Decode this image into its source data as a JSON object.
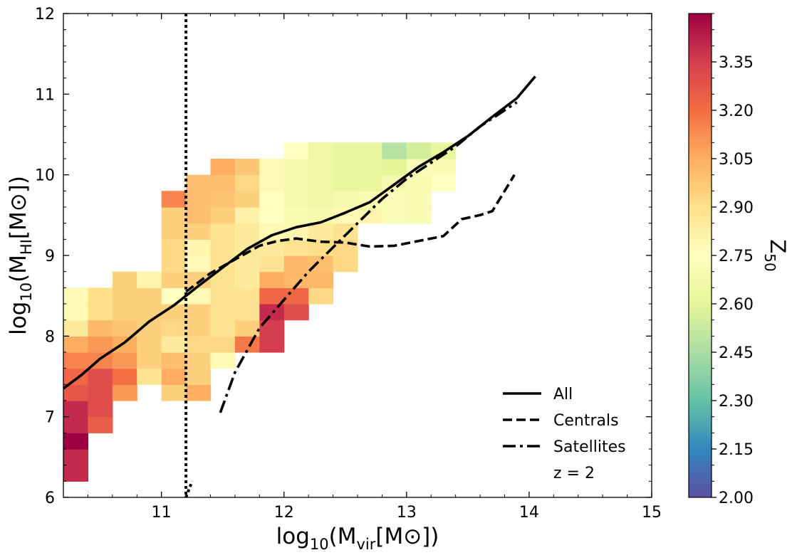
{
  "chart_data": {
    "type": "heatmap",
    "title": "",
    "xlabel": "log₁₀(Mᵥᵢᵣ[M⊙])",
    "xlabel_main": "log",
    "xlabel_sub1": "10",
    "xlabel_mid": "(M",
    "xlabel_sub2": "vir",
    "xlabel_end": "[M⊙])",
    "ylabel_main": "log",
    "ylabel_sub1": "10",
    "ylabel_mid": "(M",
    "ylabel_sub2": "HI",
    "ylabel_end": "[M⊙])",
    "xlim": [
      10.2,
      15
    ],
    "ylim": [
      6,
      12
    ],
    "xticks": [
      11,
      12,
      13,
      14,
      15
    ],
    "yticks": [
      6,
      7,
      8,
      9,
      10,
      11,
      12
    ],
    "bin_width": 0.2,
    "bin_height": 0.2,
    "colorbar": {
      "label": "Z",
      "label_sub": "50",
      "range": [
        2.0,
        3.5
      ],
      "ticks": [
        2.0,
        2.15,
        2.3,
        2.45,
        2.6,
        2.75,
        2.9,
        3.05,
        3.2,
        3.35
      ],
      "tick_labels": [
        "2.00",
        "2.15",
        "2.30",
        "2.45",
        "2.60",
        "2.75",
        "2.90",
        "3.05",
        "3.20",
        "3.35"
      ]
    },
    "cells": [
      {
        "x": 10.2,
        "y": 6.2,
        "z": 3.4
      },
      {
        "x": 10.2,
        "y": 6.4,
        "z": 3.4
      },
      {
        "x": 10.2,
        "y": 6.6,
        "z": 3.5
      },
      {
        "x": 10.2,
        "y": 6.8,
        "z": 3.4
      },
      {
        "x": 10.2,
        "y": 7.0,
        "z": 3.4
      },
      {
        "x": 10.2,
        "y": 7.2,
        "z": 3.27
      },
      {
        "x": 10.2,
        "y": 7.4,
        "z": 3.22
      },
      {
        "x": 10.2,
        "y": 7.6,
        "z": 3.15
      },
      {
        "x": 10.2,
        "y": 7.8,
        "z": 3.05
      },
      {
        "x": 10.2,
        "y": 8.0,
        "z": 2.85
      },
      {
        "x": 10.2,
        "y": 8.2,
        "z": 2.78
      },
      {
        "x": 10.2,
        "y": 8.4,
        "z": 2.78
      },
      {
        "x": 10.4,
        "y": 6.8,
        "z": 3.25
      },
      {
        "x": 10.4,
        "y": 7.0,
        "z": 3.3
      },
      {
        "x": 10.4,
        "y": 7.2,
        "z": 3.3
      },
      {
        "x": 10.4,
        "y": 7.4,
        "z": 3.3
      },
      {
        "x": 10.4,
        "y": 7.6,
        "z": 3.15
      },
      {
        "x": 10.4,
        "y": 7.8,
        "z": 3.1
      },
      {
        "x": 10.4,
        "y": 8.0,
        "z": 3.02
      },
      {
        "x": 10.4,
        "y": 8.2,
        "z": 2.9
      },
      {
        "x": 10.4,
        "y": 8.4,
        "z": 2.9
      },
      {
        "x": 10.6,
        "y": 7.2,
        "z": 3.1
      },
      {
        "x": 10.6,
        "y": 7.4,
        "z": 3.2
      },
      {
        "x": 10.6,
        "y": 7.6,
        "z": 3.1
      },
      {
        "x": 10.6,
        "y": 7.8,
        "z": 3.05
      },
      {
        "x": 10.6,
        "y": 8.0,
        "z": 2.98
      },
      {
        "x": 10.6,
        "y": 8.2,
        "z": 2.95
      },
      {
        "x": 10.6,
        "y": 8.4,
        "z": 2.95
      },
      {
        "x": 10.6,
        "y": 8.6,
        "z": 2.95
      },
      {
        "x": 10.8,
        "y": 7.4,
        "z": 2.88
      },
      {
        "x": 10.8,
        "y": 7.6,
        "z": 2.95
      },
      {
        "x": 10.8,
        "y": 7.8,
        "z": 2.95
      },
      {
        "x": 10.8,
        "y": 8.0,
        "z": 2.95
      },
      {
        "x": 10.8,
        "y": 8.2,
        "z": 2.95
      },
      {
        "x": 10.8,
        "y": 8.4,
        "z": 2.95
      },
      {
        "x": 10.8,
        "y": 8.6,
        "z": 2.8
      },
      {
        "x": 11.0,
        "y": 7.2,
        "z": 2.95
      },
      {
        "x": 11.0,
        "y": 7.4,
        "z": 3.05
      },
      {
        "x": 11.0,
        "y": 7.6,
        "z": 3.0
      },
      {
        "x": 11.0,
        "y": 7.8,
        "z": 2.85
      },
      {
        "x": 11.0,
        "y": 8.0,
        "z": 2.92
      },
      {
        "x": 11.0,
        "y": 8.2,
        "z": 2.95
      },
      {
        "x": 11.0,
        "y": 8.4,
        "z": 2.75
      },
      {
        "x": 11.0,
        "y": 8.6,
        "z": 2.95
      },
      {
        "x": 11.0,
        "y": 8.8,
        "z": 2.92
      },
      {
        "x": 11.0,
        "y": 9.0,
        "z": 2.92
      },
      {
        "x": 11.0,
        "y": 9.2,
        "z": 2.95
      },
      {
        "x": 11.0,
        "y": 9.4,
        "z": 2.95
      },
      {
        "x": 11.0,
        "y": 9.6,
        "z": 3.15
      },
      {
        "x": 11.2,
        "y": 7.2,
        "z": 3.05
      },
      {
        "x": 11.2,
        "y": 7.4,
        "z": 2.95
      },
      {
        "x": 11.2,
        "y": 7.6,
        "z": 2.95
      },
      {
        "x": 11.2,
        "y": 7.8,
        "z": 2.92
      },
      {
        "x": 11.2,
        "y": 8.0,
        "z": 2.95
      },
      {
        "x": 11.2,
        "y": 8.2,
        "z": 2.95
      },
      {
        "x": 11.2,
        "y": 8.4,
        "z": 2.78
      },
      {
        "x": 11.2,
        "y": 8.6,
        "z": 2.95
      },
      {
        "x": 11.2,
        "y": 8.8,
        "z": 2.78
      },
      {
        "x": 11.2,
        "y": 9.0,
        "z": 2.8
      },
      {
        "x": 11.2,
        "y": 9.2,
        "z": 2.95
      },
      {
        "x": 11.2,
        "y": 9.4,
        "z": 3.0
      },
      {
        "x": 11.2,
        "y": 9.6,
        "z": 3.0
      },
      {
        "x": 11.2,
        "y": 9.8,
        "z": 3.0
      },
      {
        "x": 11.4,
        "y": 7.6,
        "z": 2.78
      },
      {
        "x": 11.4,
        "y": 7.8,
        "z": 2.92
      },
      {
        "x": 11.4,
        "y": 8.0,
        "z": 2.88
      },
      {
        "x": 11.4,
        "y": 8.2,
        "z": 2.88
      },
      {
        "x": 11.4,
        "y": 8.4,
        "z": 2.88
      },
      {
        "x": 11.4,
        "y": 8.6,
        "z": 2.88
      },
      {
        "x": 11.4,
        "y": 8.8,
        "z": 2.88
      },
      {
        "x": 11.4,
        "y": 9.0,
        "z": 2.88
      },
      {
        "x": 11.4,
        "y": 9.2,
        "z": 2.88
      },
      {
        "x": 11.4,
        "y": 9.4,
        "z": 2.95
      },
      {
        "x": 11.4,
        "y": 9.6,
        "z": 2.98
      },
      {
        "x": 11.4,
        "y": 9.8,
        "z": 3.0
      },
      {
        "x": 11.4,
        "y": 10.0,
        "z": 3.05
      },
      {
        "x": 11.6,
        "y": 7.8,
        "z": 3.18
      },
      {
        "x": 11.6,
        "y": 8.0,
        "z": 2.95
      },
      {
        "x": 11.6,
        "y": 8.2,
        "z": 2.88
      },
      {
        "x": 11.6,
        "y": 8.4,
        "z": 2.88
      },
      {
        "x": 11.6,
        "y": 8.6,
        "z": 2.85
      },
      {
        "x": 11.6,
        "y": 8.8,
        "z": 2.85
      },
      {
        "x": 11.6,
        "y": 9.0,
        "z": 2.85
      },
      {
        "x": 11.6,
        "y": 9.2,
        "z": 2.85
      },
      {
        "x": 11.6,
        "y": 9.4,
        "z": 2.82
      },
      {
        "x": 11.6,
        "y": 9.6,
        "z": 2.95
      },
      {
        "x": 11.6,
        "y": 9.8,
        "z": 2.92
      },
      {
        "x": 11.6,
        "y": 10.0,
        "z": 2.98
      },
      {
        "x": 11.8,
        "y": 7.8,
        "z": 3.35
      },
      {
        "x": 11.8,
        "y": 8.0,
        "z": 3.35
      },
      {
        "x": 11.8,
        "y": 8.2,
        "z": 3.4
      },
      {
        "x": 11.8,
        "y": 8.4,
        "z": 3.22
      },
      {
        "x": 11.8,
        "y": 8.6,
        "z": 3.05
      },
      {
        "x": 11.8,
        "y": 8.8,
        "z": 2.88
      },
      {
        "x": 11.8,
        "y": 9.0,
        "z": 2.85
      },
      {
        "x": 11.8,
        "y": 9.2,
        "z": 2.78
      },
      {
        "x": 11.8,
        "y": 9.4,
        "z": 2.75
      },
      {
        "x": 11.8,
        "y": 9.6,
        "z": 2.75
      },
      {
        "x": 11.8,
        "y": 9.8,
        "z": 2.78
      },
      {
        "x": 11.8,
        "y": 10.0,
        "z": 2.78
      },
      {
        "x": 12.0,
        "y": 8.2,
        "z": 3.3
      },
      {
        "x": 12.0,
        "y": 8.4,
        "z": 3.22
      },
      {
        "x": 12.0,
        "y": 8.6,
        "z": 3.02
      },
      {
        "x": 12.0,
        "y": 8.8,
        "z": 3.02
      },
      {
        "x": 12.0,
        "y": 9.0,
        "z": 2.88
      },
      {
        "x": 12.0,
        "y": 9.2,
        "z": 2.8
      },
      {
        "x": 12.0,
        "y": 9.4,
        "z": 2.7
      },
      {
        "x": 12.0,
        "y": 9.6,
        "z": 2.68
      },
      {
        "x": 12.0,
        "y": 9.8,
        "z": 2.68
      },
      {
        "x": 12.0,
        "y": 10.0,
        "z": 2.68
      },
      {
        "x": 12.0,
        "y": 10.2,
        "z": 2.75
      },
      {
        "x": 12.2,
        "y": 8.4,
        "z": 2.92
      },
      {
        "x": 12.2,
        "y": 8.6,
        "z": 3.02
      },
      {
        "x": 12.2,
        "y": 8.8,
        "z": 3.0
      },
      {
        "x": 12.2,
        "y": 9.0,
        "z": 2.9
      },
      {
        "x": 12.2,
        "y": 9.2,
        "z": 2.85
      },
      {
        "x": 12.2,
        "y": 9.4,
        "z": 2.68
      },
      {
        "x": 12.2,
        "y": 9.6,
        "z": 2.65
      },
      {
        "x": 12.2,
        "y": 9.8,
        "z": 2.65
      },
      {
        "x": 12.2,
        "y": 10.0,
        "z": 2.65
      },
      {
        "x": 12.2,
        "y": 10.2,
        "z": 2.65
      },
      {
        "x": 12.4,
        "y": 8.8,
        "z": 2.92
      },
      {
        "x": 12.4,
        "y": 9.0,
        "z": 2.92
      },
      {
        "x": 12.4,
        "y": 9.2,
        "z": 2.88
      },
      {
        "x": 12.4,
        "y": 9.4,
        "z": 2.78
      },
      {
        "x": 12.4,
        "y": 9.6,
        "z": 2.68
      },
      {
        "x": 12.4,
        "y": 9.8,
        "z": 2.62
      },
      {
        "x": 12.4,
        "y": 10.0,
        "z": 2.62
      },
      {
        "x": 12.4,
        "y": 10.2,
        "z": 2.62
      },
      {
        "x": 12.6,
        "y": 9.4,
        "z": 2.8
      },
      {
        "x": 12.6,
        "y": 9.6,
        "z": 2.7
      },
      {
        "x": 12.6,
        "y": 9.8,
        "z": 2.62
      },
      {
        "x": 12.6,
        "y": 10.0,
        "z": 2.62
      },
      {
        "x": 12.6,
        "y": 10.2,
        "z": 2.62
      },
      {
        "x": 12.8,
        "y": 9.4,
        "z": 2.72
      },
      {
        "x": 12.8,
        "y": 9.6,
        "z": 2.72
      },
      {
        "x": 12.8,
        "y": 9.8,
        "z": 2.68
      },
      {
        "x": 12.8,
        "y": 10.0,
        "z": 2.6
      },
      {
        "x": 12.8,
        "y": 10.2,
        "z": 2.48
      },
      {
        "x": 13.0,
        "y": 9.4,
        "z": 2.7
      },
      {
        "x": 13.0,
        "y": 9.6,
        "z": 2.7
      },
      {
        "x": 13.0,
        "y": 9.8,
        "z": 2.7
      },
      {
        "x": 13.0,
        "y": 10.0,
        "z": 2.72
      },
      {
        "x": 13.0,
        "y": 10.2,
        "z": 2.55
      },
      {
        "x": 13.2,
        "y": 9.8,
        "z": 2.75
      },
      {
        "x": 13.2,
        "y": 10.0,
        "z": 2.7
      },
      {
        "x": 13.2,
        "y": 10.2,
        "z": 2.62
      }
    ],
    "series": [
      {
        "name": "All",
        "style": "solid",
        "x": [
          10.2,
          10.35,
          10.5,
          10.7,
          10.9,
          11.1,
          11.3,
          11.5,
          11.7,
          11.9,
          12.1,
          12.3,
          12.5,
          12.7,
          12.9,
          13.1,
          13.3,
          13.5,
          13.7,
          13.9,
          14.05
        ],
        "y": [
          7.35,
          7.52,
          7.72,
          7.92,
          8.18,
          8.38,
          8.62,
          8.85,
          9.08,
          9.25,
          9.35,
          9.41,
          9.53,
          9.66,
          9.88,
          10.1,
          10.28,
          10.48,
          10.72,
          10.95,
          11.22
        ]
      },
      {
        "name": "Centrals",
        "style": "dashed",
        "x": [
          11.2,
          11.4,
          11.6,
          11.8,
          11.95,
          12.1,
          12.3,
          12.5,
          12.7,
          12.9,
          13.1,
          13.3,
          13.45,
          13.6,
          13.7,
          13.88
        ],
        "y": [
          8.55,
          8.78,
          8.95,
          9.12,
          9.18,
          9.21,
          9.17,
          9.16,
          9.11,
          9.12,
          9.18,
          9.24,
          9.45,
          9.5,
          9.55,
          10.0
        ]
      },
      {
        "name": "Satellites",
        "style": "dashdot",
        "x": [
          11.48,
          11.6,
          11.8,
          12.0,
          12.2,
          12.4,
          12.6,
          12.8,
          13.0,
          13.2,
          13.4,
          13.6,
          13.75,
          13.9
        ],
        "y": [
          7.05,
          7.55,
          8.1,
          8.45,
          8.8,
          9.1,
          9.4,
          9.7,
          9.95,
          10.15,
          10.35,
          10.6,
          10.75,
          10.9
        ]
      }
    ],
    "vline": {
      "x": 11.2,
      "style": "dotted",
      "hook_x": 11.25,
      "hook_y": 6.2
    },
    "legend": {
      "position": "lower-right",
      "entries": [
        "All",
        "Centrals",
        "Satellites"
      ],
      "extra_text": "z = 2"
    },
    "colormap_stops": [
      "#5e4fa2",
      "#3288bd",
      "#66c2a5",
      "#abdda4",
      "#e6f598",
      "#ffffbf",
      "#fee08b",
      "#fdae61",
      "#f46d43",
      "#d53e4f",
      "#9e0142"
    ]
  }
}
